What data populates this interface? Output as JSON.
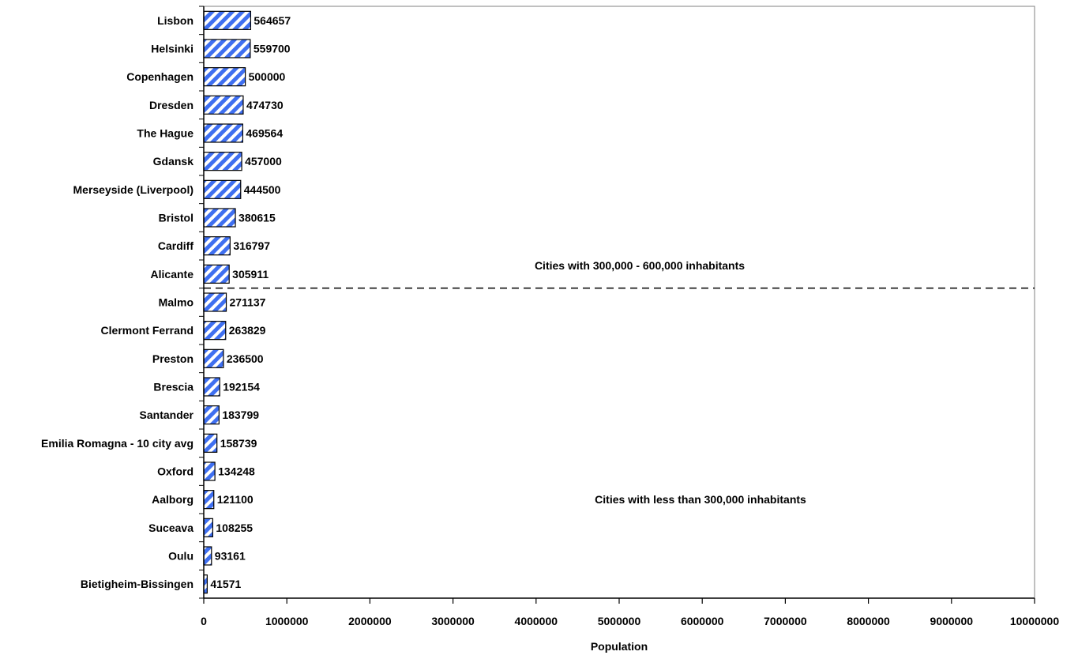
{
  "chart_data": {
    "type": "bar",
    "orientation": "horizontal",
    "categories": [
      "Lisbon",
      "Helsinki",
      "Copenhagen",
      "Dresden",
      "The Hague",
      "Gdansk",
      "Merseyside (Liverpool)",
      "Bristol",
      "Cardiff",
      "Alicante",
      "Malmo",
      "Clermont Ferrand",
      "Preston",
      "Brescia",
      "Santander",
      "Emilia Romagna - 10 city avg",
      "Oxford",
      "Aalborg",
      "Suceava",
      "Oulu",
      "Bietigheim-Bissingen"
    ],
    "values": [
      564657,
      559700,
      500000,
      474730,
      469564,
      457000,
      444500,
      380615,
      316797,
      305911,
      271137,
      263829,
      236500,
      192154,
      183799,
      158739,
      134248,
      121100,
      108255,
      93161,
      41571
    ],
    "value_labels": [
      "564657",
      "559700",
      "500000",
      "474730",
      "469564",
      "457000",
      "444500",
      "380615",
      "316797",
      "305911",
      "271137",
      "263829",
      "236500",
      "192154",
      "183799",
      "158739",
      "134248",
      "121100",
      "108255",
      "93161",
      "41571"
    ],
    "xlabel": "Population",
    "ylabel": "",
    "xlim": [
      0,
      10000000
    ],
    "x_ticks": [
      0,
      1000000,
      2000000,
      3000000,
      4000000,
      5000000,
      6000000,
      7000000,
      8000000,
      9000000,
      10000000
    ],
    "x_tick_labels": [
      "0",
      "1000000",
      "2000000",
      "3000000",
      "4000000",
      "5000000",
      "6000000",
      "7000000",
      "8000000",
      "9000000",
      "10000000"
    ],
    "grid": false,
    "annotations": [
      "Cities with 300,000 - 600,000  inhabitants",
      "Cities with less than 300,000 inhabitants"
    ],
    "divider_after_category": "Alicante",
    "colors": {
      "bar_stripe": "#3f6ff0",
      "bar_background": "#ffffff",
      "bar_border": "#000000",
      "axis": "#000000",
      "divider": "#000000"
    }
  }
}
